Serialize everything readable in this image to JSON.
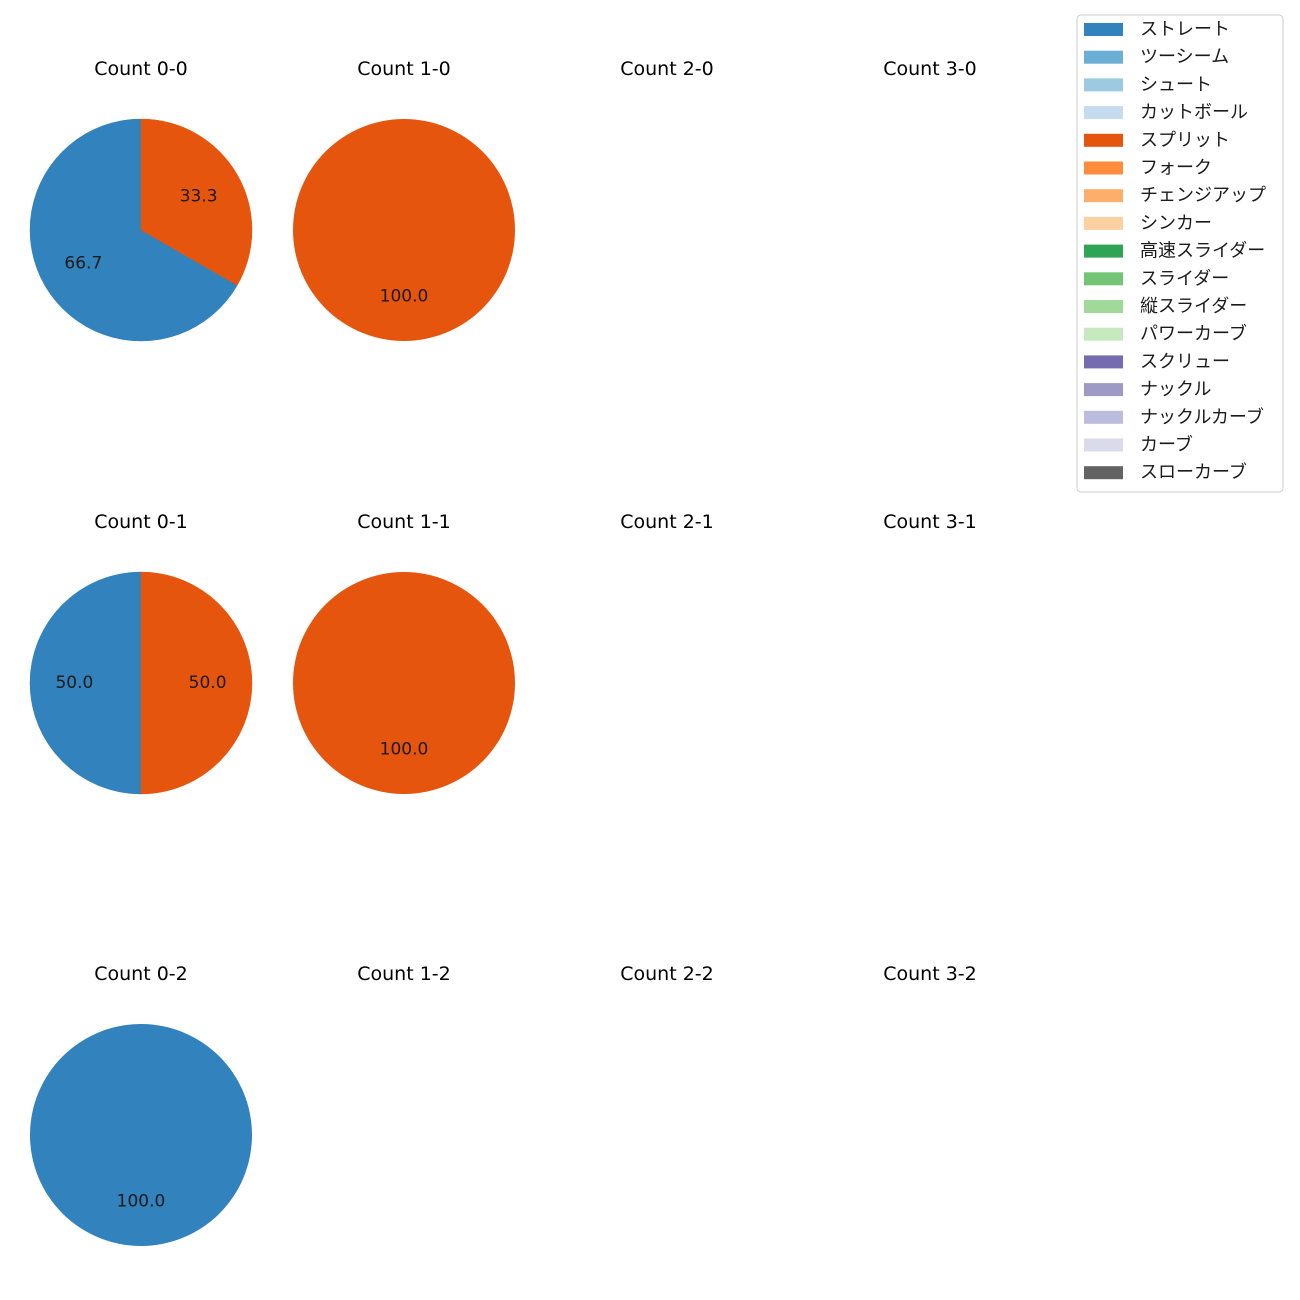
{
  "chart_data": {
    "type": "pie",
    "legend": {
      "placement": "top-right",
      "entries": [
        {
          "label": "ストレート",
          "color": "#3182bd"
        },
        {
          "label": "ツーシーム",
          "color": "#6baed6"
        },
        {
          "label": "シュート",
          "color": "#9ecae1"
        },
        {
          "label": "カットボール",
          "color": "#c6dbef"
        },
        {
          "label": "スプリット",
          "color": "#e6550d"
        },
        {
          "label": "フォーク",
          "color": "#fd8d3c"
        },
        {
          "label": "チェンジアップ",
          "color": "#fdae6b"
        },
        {
          "label": "シンカー",
          "color": "#fdd0a2"
        },
        {
          "label": "高速スライダー",
          "color": "#31a354"
        },
        {
          "label": "スライダー",
          "color": "#74c476"
        },
        {
          "label": "縦スライダー",
          "color": "#a1d99b"
        },
        {
          "label": "パワーカーブ",
          "color": "#c7e9c0"
        },
        {
          "label": "スクリュー",
          "color": "#756bb1"
        },
        {
          "label": "ナックル",
          "color": "#9e9ac8"
        },
        {
          "label": "ナックルカーブ",
          "color": "#bcbddc"
        },
        {
          "label": "カーブ",
          "color": "#dadaeb"
        },
        {
          "label": "スローカーブ",
          "color": "#636363"
        }
      ]
    },
    "panels": [
      {
        "title": "Count 0-0",
        "slices": [
          {
            "pitch": "ストレート",
            "value": 66.7,
            "label": "66.7"
          },
          {
            "pitch": "スプリット",
            "value": 33.3,
            "label": "33.3"
          }
        ]
      },
      {
        "title": "Count 1-0",
        "slices": [
          {
            "pitch": "スプリット",
            "value": 100.0,
            "label": "100.0"
          }
        ]
      },
      {
        "title": "Count 2-0",
        "slices": []
      },
      {
        "title": "Count 3-0",
        "slices": []
      },
      {
        "title": "Count 0-1",
        "slices": [
          {
            "pitch": "ストレート",
            "value": 50.0,
            "label": "50.0"
          },
          {
            "pitch": "スプリット",
            "value": 50.0,
            "label": "50.0"
          }
        ]
      },
      {
        "title": "Count 1-1",
        "slices": [
          {
            "pitch": "スプリット",
            "value": 100.0,
            "label": "100.0"
          }
        ]
      },
      {
        "title": "Count 2-1",
        "slices": []
      },
      {
        "title": "Count 3-1",
        "slices": []
      },
      {
        "title": "Count 0-2",
        "slices": [
          {
            "pitch": "ストレート",
            "value": 100.0,
            "label": "100.0"
          }
        ]
      },
      {
        "title": "Count 1-2",
        "slices": []
      },
      {
        "title": "Count 2-2",
        "slices": []
      },
      {
        "title": "Count 3-2",
        "slices": []
      }
    ]
  }
}
